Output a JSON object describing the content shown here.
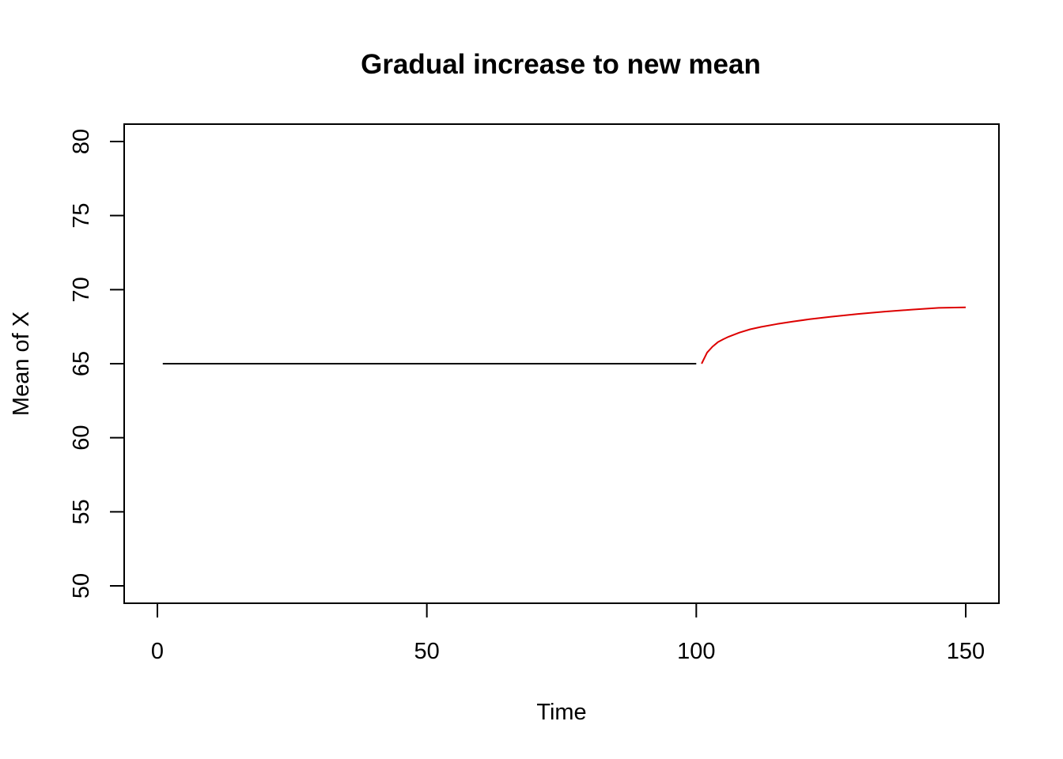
{
  "chart_data": {
    "type": "line",
    "title": "Gradual increase to new mean",
    "xlabel": "Time",
    "ylabel": "Mean of X",
    "xlim": [
      0,
      150
    ],
    "ylim": [
      50,
      80
    ],
    "x_ticks": [
      0,
      50,
      100,
      150
    ],
    "y_ticks": [
      50,
      55,
      60,
      65,
      70,
      75,
      80
    ],
    "grid": false,
    "legend": "none",
    "series": [
      {
        "color": "#000000",
        "x": [
          1,
          100
        ],
        "y": [
          65,
          65
        ]
      },
      {
        "color": "#dd0000",
        "x": [
          101,
          102,
          103,
          104,
          105,
          106,
          108,
          110,
          112,
          115,
          118,
          121,
          125,
          130,
          135,
          140,
          145,
          150
        ],
        "y": [
          65.0,
          65.75,
          66.15,
          66.45,
          66.65,
          66.82,
          67.1,
          67.32,
          67.48,
          67.68,
          67.85,
          68.0,
          68.17,
          68.36,
          68.52,
          68.65,
          68.77,
          68.8
        ]
      }
    ]
  }
}
